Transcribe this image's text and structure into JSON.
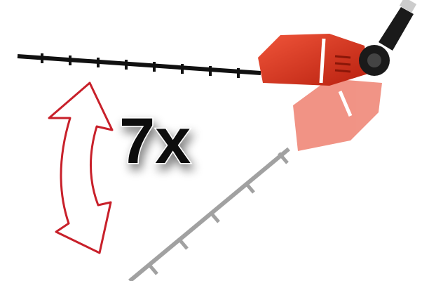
{
  "label": "7x"
}
